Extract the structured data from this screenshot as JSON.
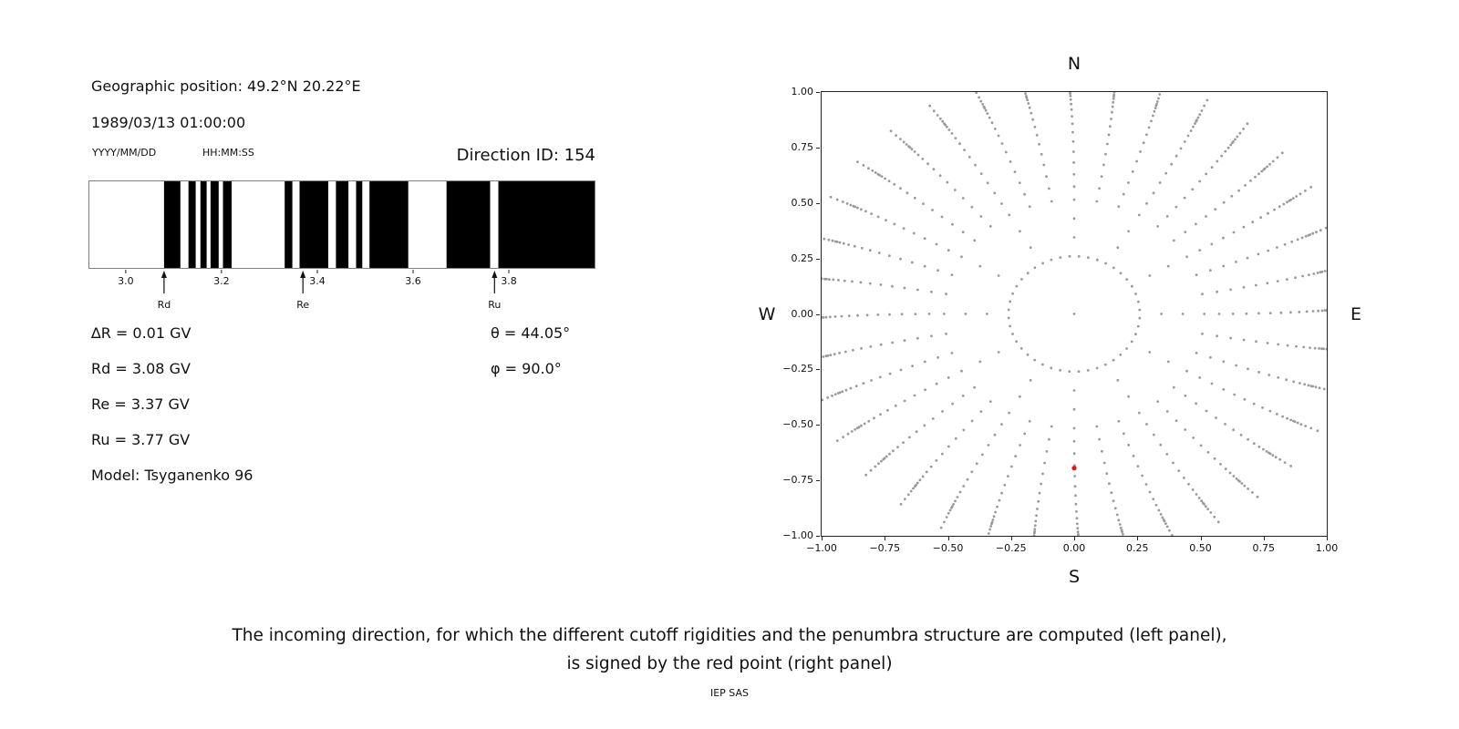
{
  "header": {
    "position": "Geographic position: 49.2°N 20.22°E",
    "datetime": "1989/03/13 01:00:00",
    "date_format": "YYYY/MM/DD",
    "time_format": "HH:MM:SS",
    "direction_id": "Direction ID: 154"
  },
  "parameters": {
    "delta_r": "∆R = 0.01 GV",
    "rd": "Rd = 3.08 GV",
    "re": "Re = 3.37 GV",
    "ru": "Ru = 3.77 GV",
    "model": "Model: Tsyganenko 96",
    "theta": "θ = 44.05°",
    "phi": "φ = 90.0°"
  },
  "caption": {
    "line1": "The incoming direction, for which the different cutoff rigidities and the penumbra structure are computed (left panel),",
    "line2": "is signed by the red point (right panel)",
    "credit": "IEP SAS"
  },
  "chart_data": [
    {
      "name": "penumbra-structure",
      "type": "bar",
      "xlim": [
        2.924,
        3.979
      ],
      "xticks": [
        3.0,
        3.2,
        3.4,
        3.6,
        3.8
      ],
      "band_color": "#000000",
      "bands_gv": [
        [
          3.08,
          3.114
        ],
        [
          3.131,
          3.146
        ],
        [
          3.156,
          3.169
        ],
        [
          3.177,
          3.194
        ],
        [
          3.203,
          3.221
        ],
        [
          3.332,
          3.348
        ],
        [
          3.363,
          3.423
        ],
        [
          3.439,
          3.465
        ],
        [
          3.481,
          3.494
        ],
        [
          3.509,
          3.59
        ],
        [
          3.67,
          3.761
        ],
        [
          3.778,
          3.979
        ]
      ],
      "markers": [
        {
          "label": "Rd",
          "value": 3.08
        },
        {
          "label": "Re",
          "value": 3.37
        },
        {
          "label": "Ru",
          "value": 3.77
        }
      ]
    },
    {
      "name": "incoming-direction-map",
      "type": "scatter",
      "xlim": [
        -1,
        1
      ],
      "ylim": [
        -1,
        1
      ],
      "xticks": [
        -1,
        -0.75,
        -0.5,
        -0.25,
        0,
        0.25,
        0.5,
        0.75,
        1
      ],
      "yticks": [
        -1,
        -0.75,
        -0.5,
        -0.25,
        0,
        0.25,
        0.5,
        0.75,
        1
      ],
      "compass": {
        "top": "N",
        "bottom": "S",
        "left": "W",
        "right": "E"
      },
      "dot_color": "#9a9a9a",
      "grid": {
        "azimuth_step_deg": 10,
        "curl_deg": 4,
        "spoke_radii": [
          0.515,
          0.574,
          0.629,
          0.682,
          0.731,
          0.777,
          0.819,
          0.857,
          0.891,
          0.921,
          0.946,
          0.966,
          0.982,
          0.993,
          1.0,
          1.012,
          1.027,
          1.046,
          1.07,
          1.098
        ],
        "inner_ring": {
          "radius": 0.26,
          "count": 44,
          "offset_deg": 4
        },
        "sparse": {
          "radii": [
            0.345,
            0.43
          ],
          "azimuth_step_deg": 30
        },
        "center_point": true
      },
      "red_point": {
        "x": 0.0,
        "y": -0.695,
        "color": "#ee1111"
      }
    }
  ]
}
